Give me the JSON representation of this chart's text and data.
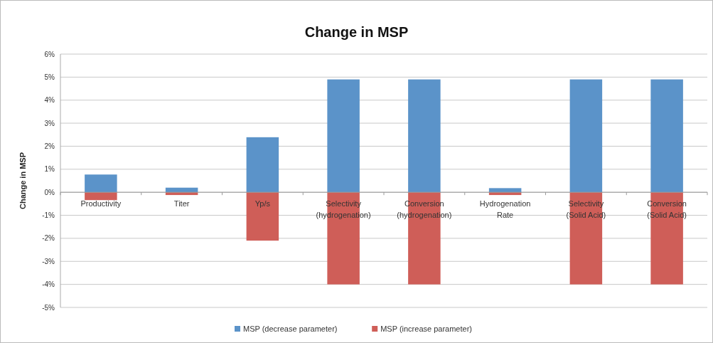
{
  "chart_data": {
    "type": "bar",
    "title": "Change in MSP",
    "ylabel": "Change in MSP",
    "categories": [
      "Productivity",
      "Titer",
      "Yp/s",
      "Selectivity (hydrogenation)",
      "Conversion (hydrogenation)",
      "Hydrogenation Rate",
      "Selectivity (Solid Acid)",
      "Conversion (Solid Acid)"
    ],
    "series": [
      {
        "name": "MSP (decrease parameter)",
        "color": "#5b93c9",
        "values": [
          0.77,
          0.2,
          2.39,
          4.9,
          4.9,
          0.18,
          4.9,
          4.9
        ]
      },
      {
        "name": "MSP (increase parameter)",
        "color": "#cf5e58",
        "values": [
          -0.34,
          -0.12,
          -2.1,
          -4.0,
          -4.0,
          -0.12,
          -4.0,
          -4.0
        ]
      }
    ],
    "stacked": true,
    "ylim": [
      -5,
      6
    ],
    "yticks": [
      {
        "value": -5,
        "label": "-5%"
      },
      {
        "value": -4,
        "label": "-4%"
      },
      {
        "value": -3,
        "label": "-3%"
      },
      {
        "value": -2,
        "label": "-2%"
      },
      {
        "value": -1,
        "label": "-1%"
      },
      {
        "value": 0,
        "label": "0%"
      },
      {
        "value": 1,
        "label": "1%"
      },
      {
        "value": 2,
        "label": "2%"
      },
      {
        "value": 3,
        "label": "3%"
      },
      {
        "value": 4,
        "label": "4%"
      },
      {
        "value": 5,
        "label": "5%"
      },
      {
        "value": 6,
        "label": "6%"
      }
    ],
    "grid": "y",
    "legend": "bottom"
  }
}
